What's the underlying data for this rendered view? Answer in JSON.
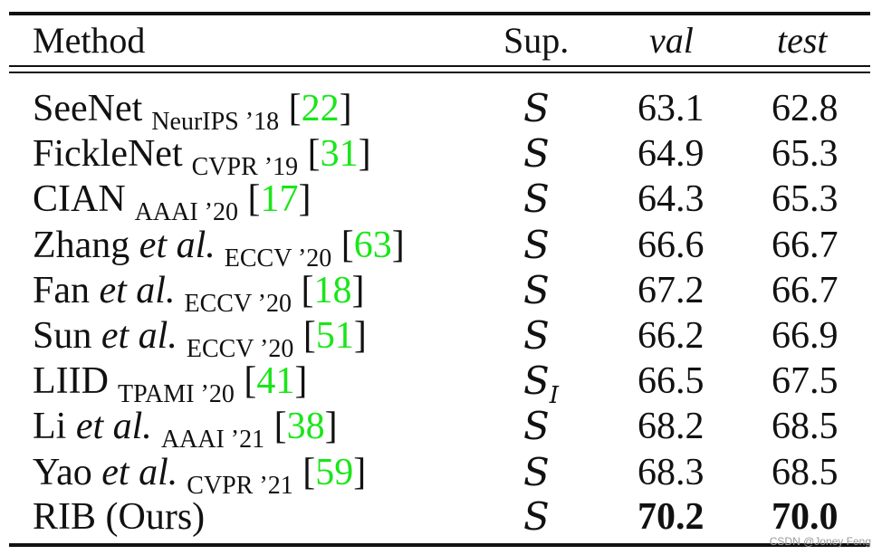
{
  "header": {
    "method": "Method",
    "sup": "Sup.",
    "val": "val",
    "test": "test"
  },
  "rows": [
    {
      "name": "SeeNet",
      "etal": "",
      "venue": "NeurIPS ’18",
      "ref": "22",
      "sup": "S",
      "sup_sub": "",
      "val": "63.1",
      "test": "62.8"
    },
    {
      "name": "FickleNet",
      "etal": "",
      "venue": "CVPR ’19",
      "ref": "31",
      "sup": "S",
      "sup_sub": "",
      "val": "64.9",
      "test": "65.3"
    },
    {
      "name": "CIAN",
      "etal": "",
      "venue": "AAAI ’20",
      "ref": "17",
      "sup": "S",
      "sup_sub": "",
      "val": "64.3",
      "test": "65.3"
    },
    {
      "name": "Zhang",
      "etal": "et al.",
      "venue": "ECCV ’20",
      "ref": "63",
      "sup": "S",
      "sup_sub": "",
      "val": "66.6",
      "test": "66.7"
    },
    {
      "name": "Fan",
      "etal": "et al.",
      "venue": "ECCV ’20",
      "ref": "18",
      "sup": "S",
      "sup_sub": "",
      "val": "67.2",
      "test": "66.7"
    },
    {
      "name": "Sun",
      "etal": "et al.",
      "venue": "ECCV ’20",
      "ref": "51",
      "sup": "S",
      "sup_sub": "",
      "val": "66.2",
      "test": "66.9"
    },
    {
      "name": "LIID",
      "etal": "",
      "venue": "TPAMI ’20",
      "ref": "41",
      "sup": "S",
      "sup_sub": "I",
      "val": "66.5",
      "test": "67.5"
    },
    {
      "name": "Li",
      "etal": "et al.",
      "venue": "AAAI ’21",
      "ref": "38",
      "sup": "S",
      "sup_sub": "",
      "val": "68.2",
      "test": "68.5"
    },
    {
      "name": "Yao",
      "etal": "et al.",
      "venue": "CVPR ’21",
      "ref": "59",
      "sup": "S",
      "sup_sub": "",
      "val": "68.3",
      "test": "68.5"
    }
  ],
  "ours": {
    "name": "RIB (Ours)",
    "sup": "S",
    "val": "70.2",
    "test": "70.0"
  },
  "watermark": "CSDN @Joney Feng"
}
